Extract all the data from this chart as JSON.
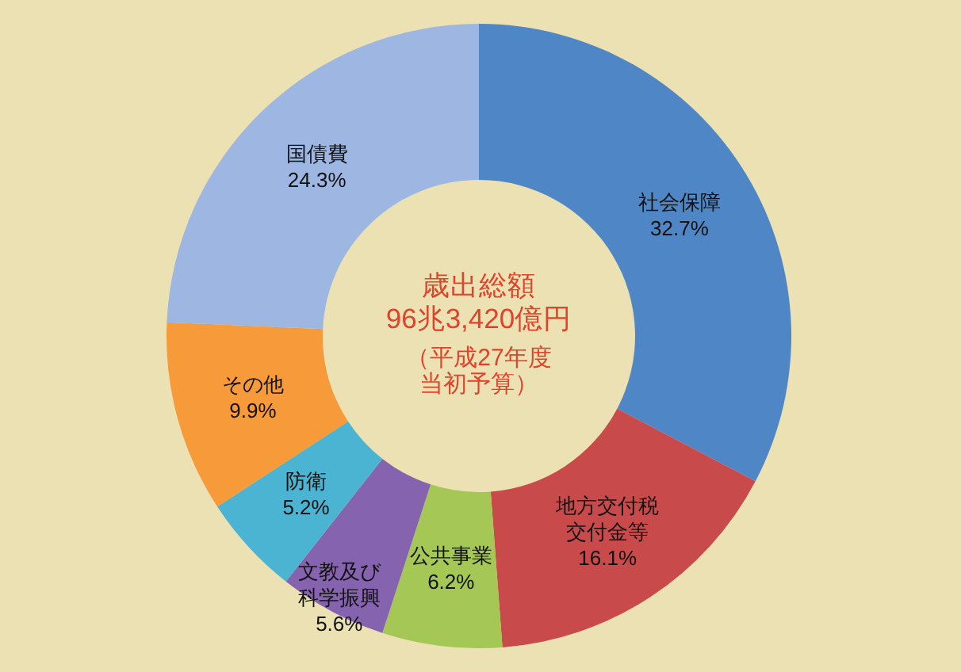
{
  "chart_data": {
    "type": "donut",
    "title": "歳出総額",
    "subtitle": "96兆3,420億円",
    "annotations": [
      "（平成27年度当初予算）"
    ],
    "categories": [
      "社会保障",
      "地方交付税交付金等",
      "公共事業",
      "文教及び科学振興",
      "防衛",
      "その他",
      "国債費"
    ],
    "values": [
      32.7,
      16.1,
      6.2,
      5.6,
      5.2,
      9.9,
      24.3
    ],
    "value_labels": [
      "32.7%",
      "16.1%",
      "6.2%",
      "5.6%",
      "5.2%",
      "9.9%",
      "24.3%"
    ],
    "colors": [
      "#4f86c6",
      "#c94a4b",
      "#a4c756",
      "#8663ae",
      "#4bb4d2",
      "#f69a3a",
      "#9db7e2"
    ]
  }
}
